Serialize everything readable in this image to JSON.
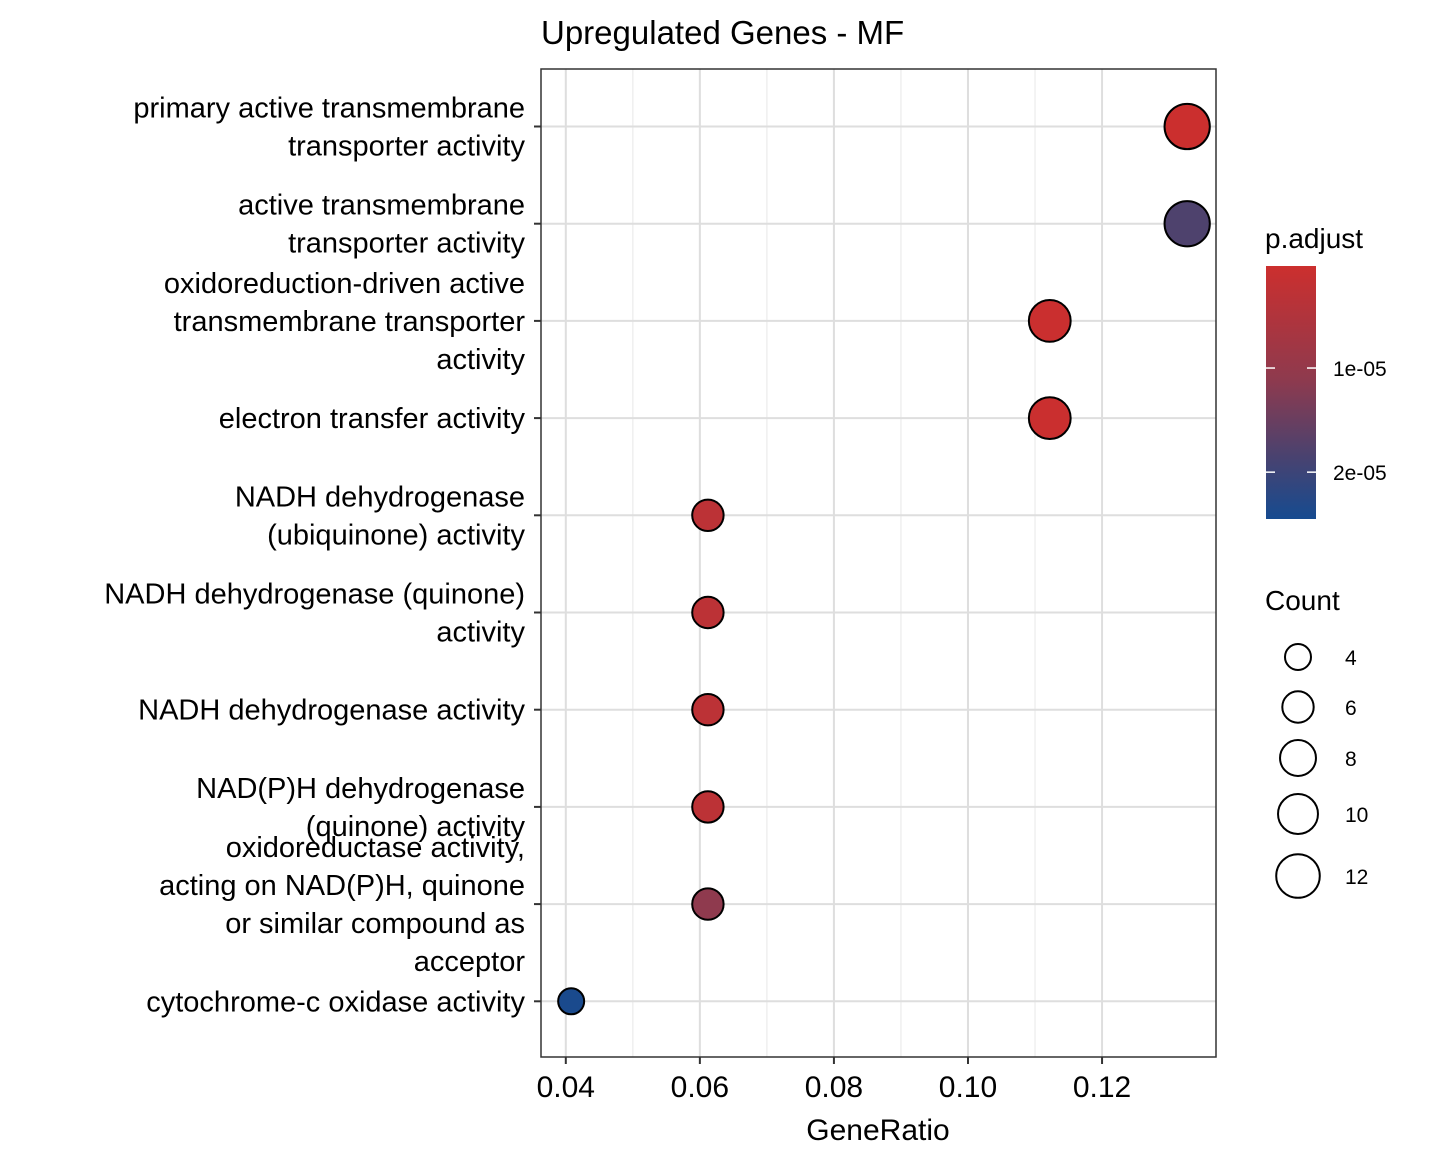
{
  "chart_data": {
    "type": "scatter",
    "subtype": "dot-plot",
    "title": "Upregulated Genes - MF",
    "xlabel": "GeneRatio",
    "ylabel": "",
    "xlim": [
      0.0363,
      0.137
    ],
    "xticks": [
      "0.04",
      "0.06",
      "0.08",
      "0.10",
      "0.12"
    ],
    "grid": true,
    "categories": [
      [
        "primary active transmembrane",
        "transporter activity"
      ],
      [
        "active transmembrane",
        "transporter activity"
      ],
      [
        "oxidoreduction-driven active",
        "transmembrane transporter",
        "activity"
      ],
      [
        "electron transfer activity"
      ],
      [
        "NADH dehydrogenase",
        "(ubiquinone) activity"
      ],
      [
        "NADH dehydrogenase (quinone)",
        "activity"
      ],
      [
        "NADH dehydrogenase activity"
      ],
      [
        "NAD(P)H dehydrogenase",
        "(quinone) activity"
      ],
      [
        "oxidoreductase activity,",
        "acting on NAD(P)H, quinone",
        "or similar compound as",
        "acceptor"
      ],
      [
        "cytochrome-c oxidase activity"
      ]
    ],
    "points": [
      {
        "x": 0.1327,
        "count": 13,
        "p_adjust": 3e-07
      },
      {
        "x": 0.1327,
        "count": 13,
        "p_adjust": 1.8e-05
      },
      {
        "x": 0.1122,
        "count": 11,
        "p_adjust": 6e-07
      },
      {
        "x": 0.1122,
        "count": 11,
        "p_adjust": 6e-07
      },
      {
        "x": 0.0612,
        "count": 6,
        "p_adjust": 3e-06
      },
      {
        "x": 0.0612,
        "count": 6,
        "p_adjust": 3e-06
      },
      {
        "x": 0.0612,
        "count": 6,
        "p_adjust": 3e-06
      },
      {
        "x": 0.0612,
        "count": 6,
        "p_adjust": 3e-06
      },
      {
        "x": 0.0612,
        "count": 6,
        "p_adjust": 1.1e-05
      },
      {
        "x": 0.0408,
        "count": 4,
        "p_adjust": 2.4e-05
      }
    ],
    "color_legend": {
      "title": "p.adjust",
      "ticks": [
        {
          "label": "1e-05",
          "value": 1e-05
        },
        {
          "label": "2e-05",
          "value": 2e-05
        }
      ],
      "range": [
        2e-07,
        2.45e-05
      ],
      "low_color": "#CC2F2E",
      "high_color": "#164B90"
    },
    "size_legend": {
      "title": "Count",
      "entries": [
        {
          "label": "4",
          "value": 4
        },
        {
          "label": "6",
          "value": 6
        },
        {
          "label": "8",
          "value": 8
        },
        {
          "label": "10",
          "value": 10
        },
        {
          "label": "12",
          "value": 12
        }
      ]
    }
  }
}
